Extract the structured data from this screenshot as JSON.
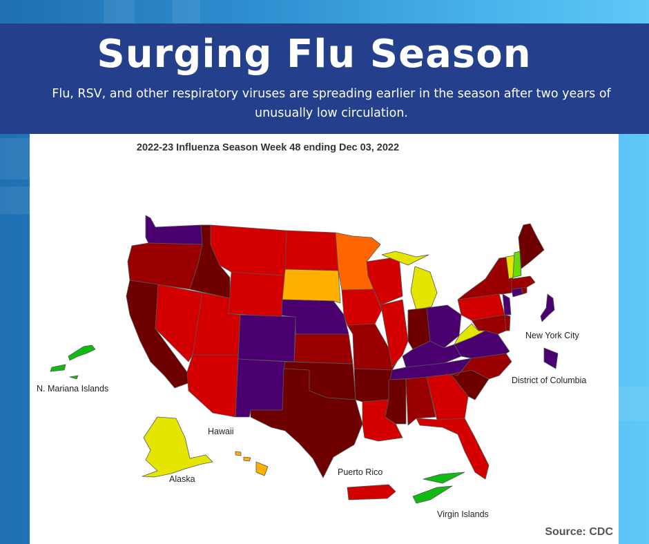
{
  "header": {
    "title": "Surging Flu Season",
    "subtitle": "Flu, RSV, and other respiratory viruses are spreading earlier in the season after two years of unusually low circulation."
  },
  "map": {
    "title": "2022-23 Influenza Season Week 48 ending Dec 03, 2022",
    "source": "Source: CDC",
    "labels": {
      "new_york_city": "New York City",
      "district_of_columbia": "District of Columbia",
      "n_mariana_islands": "N. Mariana Islands",
      "hawaii": "Hawaii",
      "alaska": "Alaska",
      "puerto_rico": "Puerto Rico",
      "virgin_islands": "Virgin Islands"
    },
    "colors": {
      "very_high_dark": "#6e0000",
      "high_dark_red": "#9a0000",
      "red": "#d40000",
      "orange": "#ff6600",
      "amber": "#ffb000",
      "yellow": "#e4e600",
      "light_green": "#66dd00",
      "green": "#11bb11",
      "purple": "#4b0070",
      "border": "#555555"
    }
  }
}
